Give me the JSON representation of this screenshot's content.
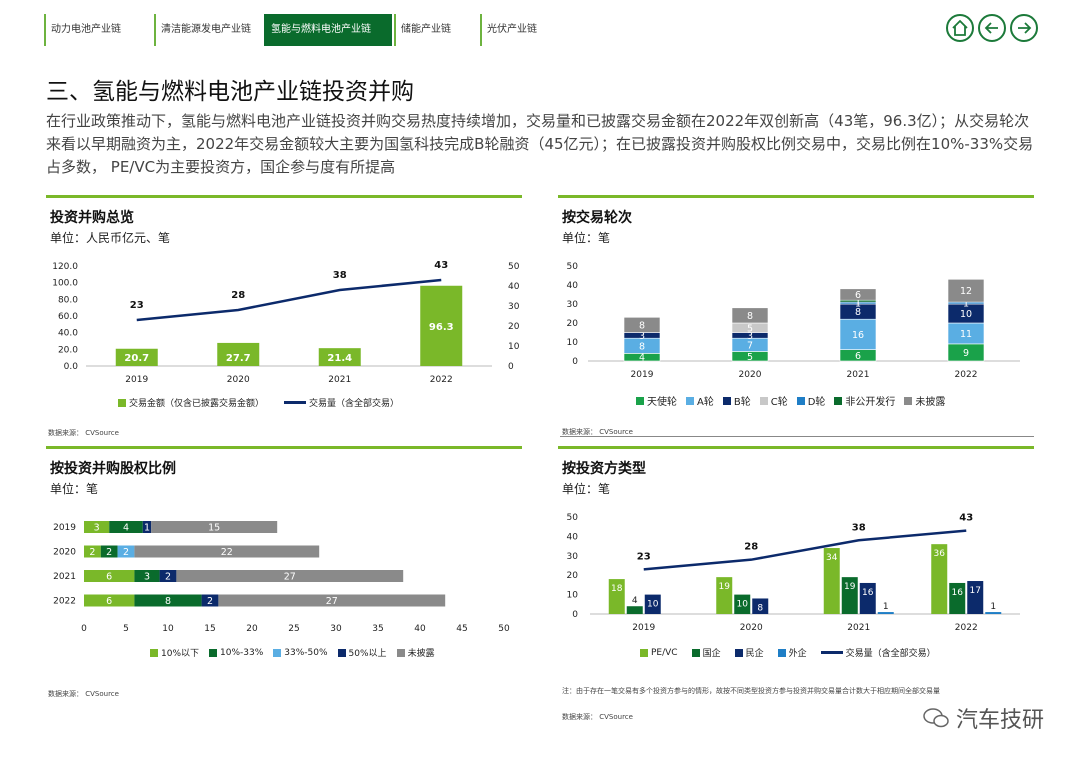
{
  "tabs": [
    {
      "label": "动力电池产业链",
      "active": false
    },
    {
      "label": "清洁能源发电产业链",
      "active": false
    },
    {
      "label": "氢能与燃料电池产业链",
      "active": true
    },
    {
      "label": "储能产业链",
      "active": false
    },
    {
      "label": "光伏产业链",
      "active": false
    }
  ],
  "nav": {
    "home_icon": "home-icon",
    "back_icon": "arrow-left-icon",
    "next_icon": "arrow-right-icon"
  },
  "title": "三、氢能与燃料电池产业链投资并购",
  "description": "在行业政策推动下，氢能与燃料电池产业链投资并购交易热度持续增加，交易量和已披露交易金额在2022年双创新高（43笔，96.3亿）；从交易轮次来看以早期融资为主，2022年交易金额较大主要为国氢科技完成B轮融资（45亿元）；在已披露投资并购股权比例交易中，交易比例在10%-33%交易占多数， PE/VC为主要投资方，国企参与度有所提高",
  "watermark": "汽车技研",
  "colors": {
    "light_green": "#7ab829",
    "dark_green": "#0a6b2c",
    "navy": "#0c2a6b",
    "light_blue": "#5aaee3",
    "gray": "#8a8a8a",
    "mid_green": "#1aa24a",
    "pale_gray": "#c8c8c8",
    "blue": "#1f7ec6"
  },
  "panels": {
    "p1": {
      "title": "投资并购总览",
      "unit": "单位：人民币亿元、笔",
      "source": "数据来源：  CVSource"
    },
    "p2": {
      "title": "按交易轮次",
      "unit": "单位：笔",
      "source": "数据来源：  CVSource"
    },
    "p3": {
      "title": "按投资并购股权比例",
      "unit": "单位：笔",
      "source": "数据来源：  CVSource"
    },
    "p4": {
      "title": "按投资方类型",
      "unit": "单位：笔",
      "note": "注：由于存在一笔交易有多个投资方参与的情形，故按不同类型投资方参与投资并购交易量合计数大于相应期间全部交易量",
      "source": "数据来源：  CVSource"
    }
  },
  "chart_data": [
    {
      "type": "bar",
      "categories": [
        "2019",
        "2020",
        "2021",
        "2022"
      ],
      "series": [
        {
          "name": "交易金额（仅含已披露交易金额）",
          "kind": "bar",
          "axis": "left",
          "values": [
            20.7,
            27.7,
            21.4,
            96.3
          ]
        },
        {
          "name": "交易量（含全部交易）",
          "kind": "line",
          "axis": "right",
          "values": [
            23,
            28,
            38,
            43
          ]
        }
      ],
      "left_ticks": [
        "0.0",
        "20.0",
        "40.0",
        "60.0",
        "80.0",
        "100.0",
        "120.0"
      ],
      "right_ticks": [
        "0",
        "10",
        "20",
        "30",
        "40",
        "50"
      ],
      "ylim": [
        0,
        120
      ],
      "y2lim": [
        0,
        50
      ]
    },
    {
      "type": "bar",
      "stacked": true,
      "categories": [
        "2019",
        "2020",
        "2021",
        "2022"
      ],
      "series": [
        {
          "name": "天使轮",
          "values": [
            4,
            5,
            6,
            9
          ]
        },
        {
          "name": "A轮",
          "values": [
            8,
            7,
            16,
            11
          ]
        },
        {
          "name": "B轮",
          "values": [
            3,
            3,
            8,
            10
          ]
        },
        {
          "name": "C轮",
          "values": [
            0,
            5,
            0,
            0
          ]
        },
        {
          "name": "D轮",
          "values": [
            0,
            0,
            1,
            1
          ]
        },
        {
          "name": "非公开发行",
          "values": [
            0,
            0,
            1,
            0
          ]
        },
        {
          "name": "未披露",
          "values": [
            8,
            8,
            6,
            12
          ]
        }
      ],
      "ticks": [
        "0",
        "10",
        "20",
        "30",
        "40",
        "50"
      ],
      "ylim": [
        0,
        50
      ]
    },
    {
      "type": "bar",
      "orientation": "horizontal",
      "stacked": true,
      "categories": [
        "2019",
        "2020",
        "2021",
        "2022"
      ],
      "series": [
        {
          "name": "10%以下",
          "values": [
            3,
            2,
            6,
            6
          ]
        },
        {
          "name": "10%-33%",
          "values": [
            4,
            2,
            3,
            8
          ]
        },
        {
          "name": "33%-50%",
          "values": [
            0,
            2,
            0,
            0
          ]
        },
        {
          "name": "50%以上",
          "values": [
            1,
            0,
            2,
            2
          ]
        },
        {
          "name": "未披露",
          "values": [
            15,
            22,
            27,
            27
          ]
        }
      ],
      "ticks": [
        "0",
        "5",
        "10",
        "15",
        "20",
        "25",
        "30",
        "35",
        "40",
        "45",
        "50"
      ],
      "xlim": [
        0,
        50
      ]
    },
    {
      "type": "bar",
      "categories": [
        "2019",
        "2020",
        "2021",
        "2022"
      ],
      "series": [
        {
          "name": "PE/VC",
          "kind": "bar",
          "values": [
            18,
            19,
            34,
            36
          ]
        },
        {
          "name": "国企",
          "kind": "bar",
          "values": [
            4,
            10,
            19,
            16
          ]
        },
        {
          "name": "民企",
          "kind": "bar",
          "values": [
            10,
            8,
            16,
            17
          ]
        },
        {
          "name": "外企",
          "kind": "bar",
          "values": [
            0,
            0,
            1,
            1
          ]
        },
        {
          "name": "交易量（含全部交易）",
          "kind": "line",
          "values": [
            23,
            28,
            38,
            43
          ]
        }
      ],
      "ticks": [
        "0",
        "10",
        "20",
        "30",
        "40",
        "50"
      ],
      "ylim": [
        0,
        50
      ]
    }
  ]
}
